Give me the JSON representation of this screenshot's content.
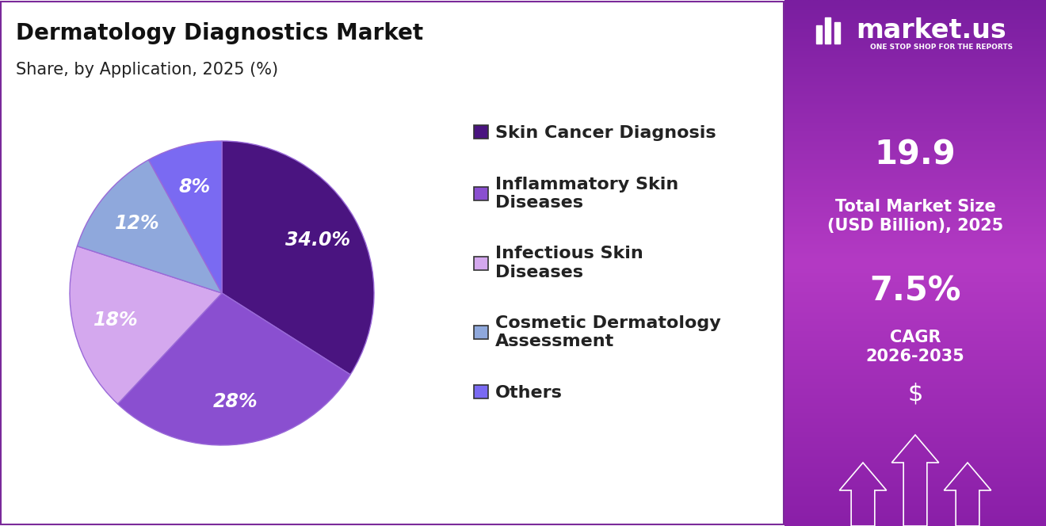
{
  "chart_data": {
    "type": "pie",
    "title": "Dermatology Diagnostics Market",
    "subtitle": "Share, by Application, 2025 (%)",
    "categories": [
      "Skin Cancer Diagnosis",
      "Inflammatory Skin Diseases",
      "Infectious Skin Diseases",
      "Cosmetic Dermatology Assessment",
      "Others"
    ],
    "values": [
      34.0,
      28,
      18,
      12,
      8
    ],
    "value_labels": [
      "34.0%",
      "28%",
      "18%",
      "12%",
      "8%"
    ],
    "colors": [
      "#4a1480",
      "#8a4fd0",
      "#d4a8ee",
      "#8fa8dc",
      "#7a6af2"
    ],
    "data_labels": true,
    "legend": "right"
  },
  "panel": {
    "logo": "market.us",
    "tagline": "ONE STOP SHOP FOR THE REPORTS",
    "market_size": "19.9",
    "market_size_label": "Total Market Size (USD Billion), 2025",
    "cagr": "7.5%",
    "cagr_label": "CAGR 2026-2035",
    "currency": "$"
  }
}
